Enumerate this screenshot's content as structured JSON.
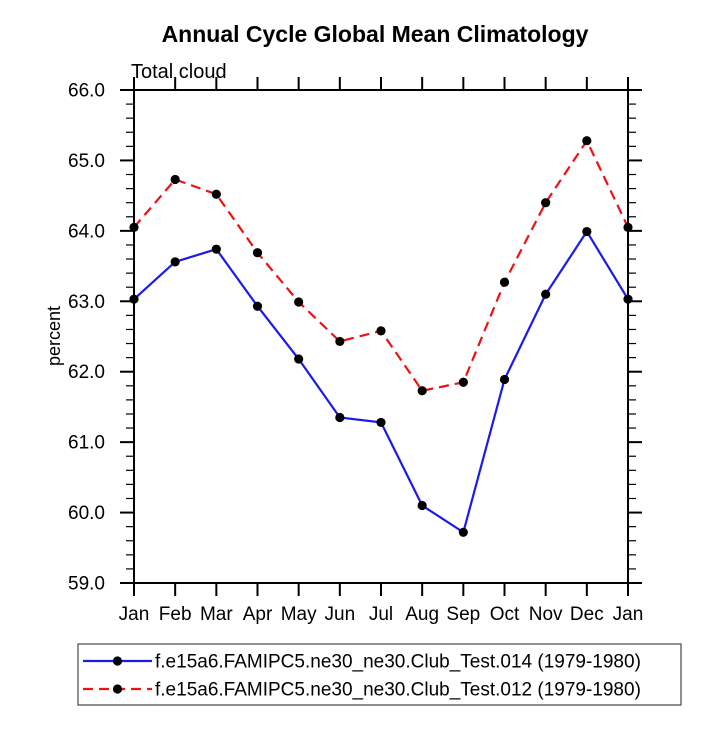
{
  "page": {
    "background": "#ffffff"
  },
  "chart_data": {
    "type": "line",
    "title": "Annual Cycle Global Mean Climatology",
    "subtitle": "Total cloud",
    "ylabel": "percent",
    "xlabel": "",
    "categories": [
      "Jan",
      "Feb",
      "Mar",
      "Apr",
      "May",
      "Jun",
      "Jul",
      "Aug",
      "Sep",
      "Oct",
      "Nov",
      "Dec",
      "Jan"
    ],
    "series": [
      {
        "name": "f.e15a6.FAMIPC5.ne30_ne30.Club_Test.014 (1979-1980)",
        "color": "#1a1aee",
        "line_style": "solid",
        "marker": "filled-circle",
        "marker_color": "#000000",
        "values": [
          63.03,
          63.56,
          63.74,
          62.93,
          62.18,
          61.35,
          61.28,
          60.1,
          59.72,
          61.89,
          63.1,
          63.99,
          63.03
        ]
      },
      {
        "name": "f.e15a6.FAMIPC5.ne30_ne30.Club_Test.012 (1979-1980)",
        "color": "#ee1111",
        "line_style": "dashed",
        "marker": "filled-circle",
        "marker_color": "#000000",
        "values": [
          64.05,
          64.73,
          64.52,
          63.69,
          62.99,
          62.43,
          62.58,
          61.73,
          61.85,
          63.27,
          64.4,
          65.28,
          64.05
        ]
      }
    ],
    "ylim": [
      59.0,
      66.0
    ],
    "ytick_major_step": 1.0,
    "ytick_minor_step": 0.2,
    "ytick_label_format": "one-decimal",
    "grid": false,
    "legend_position": "bottom-boxed",
    "axis_color": "#000000"
  }
}
